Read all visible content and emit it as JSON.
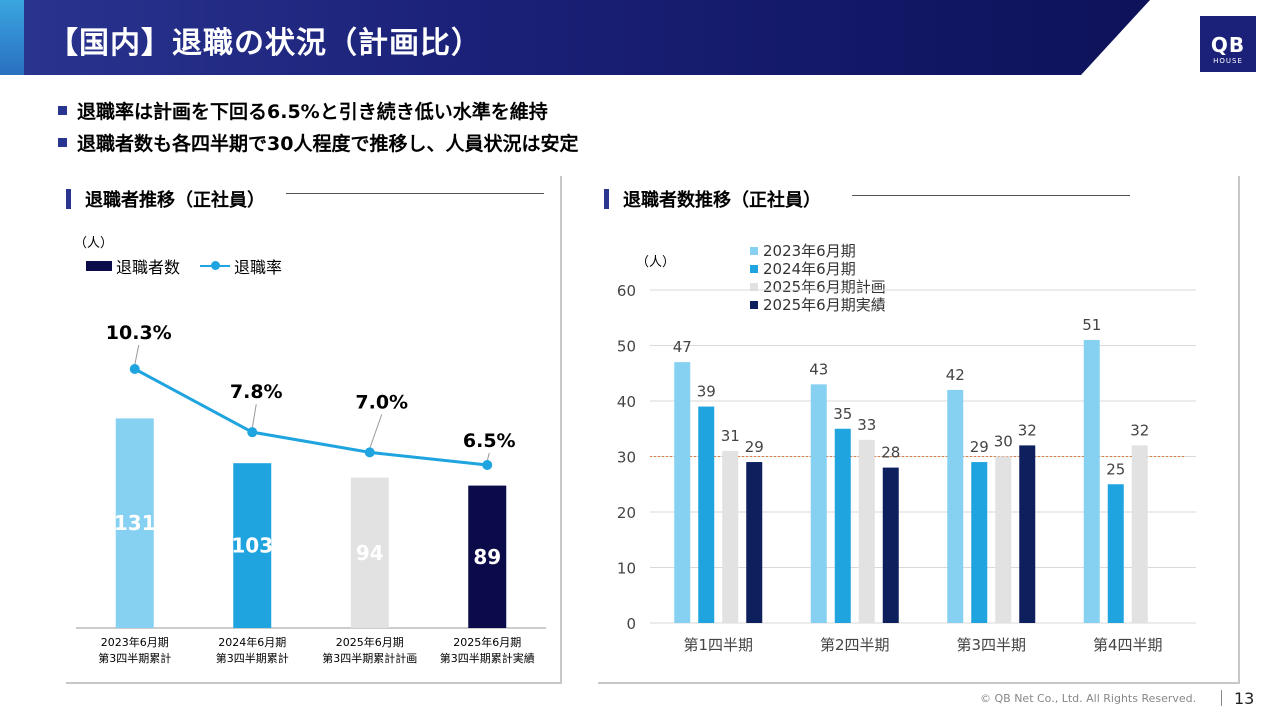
{
  "header": {
    "title": "【国内】退職の状況（計画比）",
    "logo_top": "QB",
    "logo_bottom": "HOUSE"
  },
  "bullets": [
    "退職率は計画を下回る6.5%と引き続き低い水準を維持",
    "退職者数も各四半期で30人程度で推移し、人員状況は安定"
  ],
  "colors": {
    "navy": "#0b0b4a",
    "blue": "#1fa4e0",
    "light_blue": "#86d0f2",
    "light_gray": "#e2e2e2",
    "dark_navy": "#0d1f5c",
    "header": "#1b2178"
  },
  "footer": {
    "copyright": "© QB Net Co., Ltd. All Rights Reserved.",
    "page": "13"
  },
  "left_panel": {
    "title": "退職者推移（正社員）",
    "unit": "（人）",
    "legend": {
      "count": "退職者数",
      "rate": "退職率"
    }
  },
  "right_panel": {
    "title": "退職者数推移（正社員）",
    "unit": "（人）"
  },
  "chart_data": [
    {
      "type": "bar",
      "title": "退職者推移（正社員）",
      "categories": [
        [
          "2023年6月期",
          "第3四半期累計"
        ],
        [
          "2024年6月期",
          "第3四半期累計"
        ],
        [
          "2025年6月期",
          "第3四半期累計計画"
        ],
        [
          "2025年6月期",
          "第3四半期累計実績"
        ]
      ],
      "series": [
        {
          "name": "退職者数",
          "kind": "bar",
          "values": [
            131,
            103,
            94,
            89
          ],
          "colors": [
            "#86d0f2",
            "#1fa4e0",
            "#e2e2e2",
            "#0b0b4a"
          ]
        },
        {
          "name": "退職率",
          "kind": "line",
          "values": [
            10.3,
            7.8,
            7.0,
            6.5
          ],
          "labels": [
            "10.3%",
            "7.8%",
            "7.0%",
            "6.5%"
          ],
          "color": "#1fa4e0"
        }
      ],
      "ylabel": "（人）",
      "bar_ylim": [
        0,
        160
      ],
      "rate_ylim": [
        0,
        13
      ],
      "grid": false
    },
    {
      "type": "bar",
      "title": "退職者数推移（正社員）",
      "categories": [
        "第1四半期",
        "第2四半期",
        "第3四半期",
        "第4四半期"
      ],
      "series": [
        {
          "name": "2023年6月期",
          "values": [
            47,
            43,
            42,
            51
          ],
          "color": "#86d0f2"
        },
        {
          "name": "2024年6月期",
          "values": [
            39,
            35,
            29,
            25
          ],
          "color": "#1fa4e0"
        },
        {
          "name": "2025年6月期計画",
          "values": [
            31,
            33,
            30,
            32
          ],
          "color": "#e2e2e2"
        },
        {
          "name": "2025年6月期実績",
          "values": [
            29,
            28,
            32,
            null
          ],
          "color": "#0d1f5c"
        }
      ],
      "ylabel": "（人）",
      "ylim": [
        0,
        60
      ],
      "yticks": [
        0,
        10,
        20,
        30,
        40,
        50,
        60
      ],
      "grid": true,
      "reference_line": 30,
      "legend_position": "top"
    }
  ]
}
